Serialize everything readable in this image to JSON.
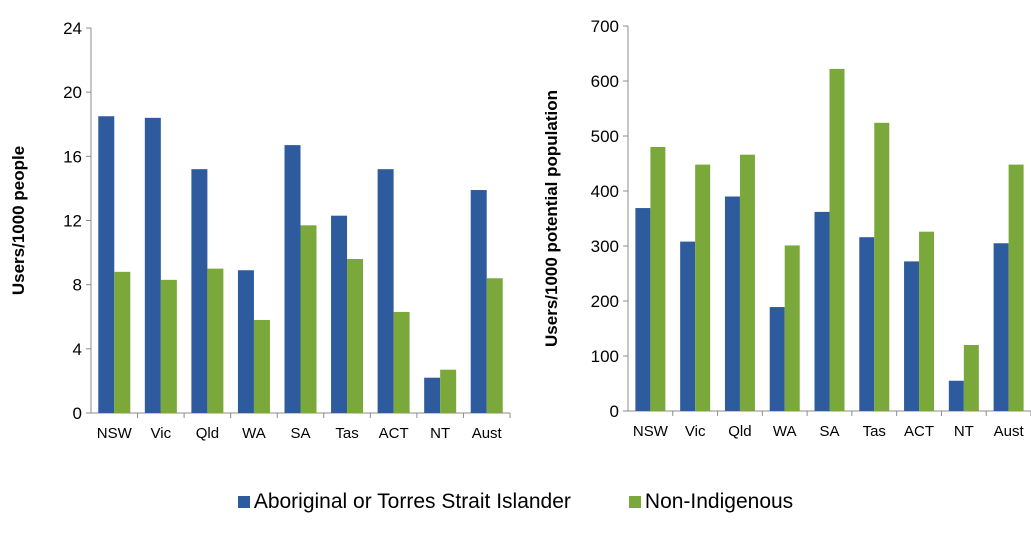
{
  "colors": {
    "indigenous": "#2E5B9E",
    "non_indigenous": "#7BA83A",
    "axis": "#8C8C8C"
  },
  "legend": {
    "series_1": "Aboriginal or Torres Strait Islander",
    "series_2": "Non-Indigenous"
  },
  "chart_data": [
    {
      "type": "bar",
      "title": "",
      "xlabel": "",
      "ylabel": "Users/1000 people",
      "ylim": [
        0,
        24
      ],
      "yticks": [
        0,
        4,
        8,
        12,
        16,
        20,
        24
      ],
      "categories": [
        "NSW",
        "Vic",
        "Qld",
        "WA",
        "SA",
        "Tas",
        "ACT",
        "NT",
        "Aust"
      ],
      "series": [
        {
          "name": "Aboriginal or Torres Strait Islander",
          "values": [
            18.5,
            18.4,
            15.2,
            8.9,
            16.7,
            12.3,
            15.2,
            2.2,
            13.9
          ]
        },
        {
          "name": "Non-Indigenous",
          "values": [
            8.8,
            8.3,
            9.0,
            5.8,
            11.7,
            9.6,
            6.3,
            2.7,
            8.4
          ]
        }
      ],
      "grid": false,
      "legend": "bottom"
    },
    {
      "type": "bar",
      "title": "",
      "xlabel": "",
      "ylabel": "Users/1000 potential population",
      "ylim": [
        0,
        700
      ],
      "yticks": [
        0,
        100,
        200,
        300,
        400,
        500,
        600,
        700
      ],
      "categories": [
        "NSW",
        "Vic",
        "Qld",
        "WA",
        "SA",
        "Tas",
        "ACT",
        "NT",
        "Aust"
      ],
      "series": [
        {
          "name": "Aboriginal or Torres Strait Islander",
          "values": [
            369,
            308,
            390,
            189,
            362,
            316,
            272,
            55,
            305
          ]
        },
        {
          "name": "Non-Indigenous",
          "values": [
            480,
            448,
            466,
            301,
            622,
            524,
            326,
            120,
            448
          ]
        }
      ],
      "grid": false,
      "legend": "bottom"
    }
  ]
}
